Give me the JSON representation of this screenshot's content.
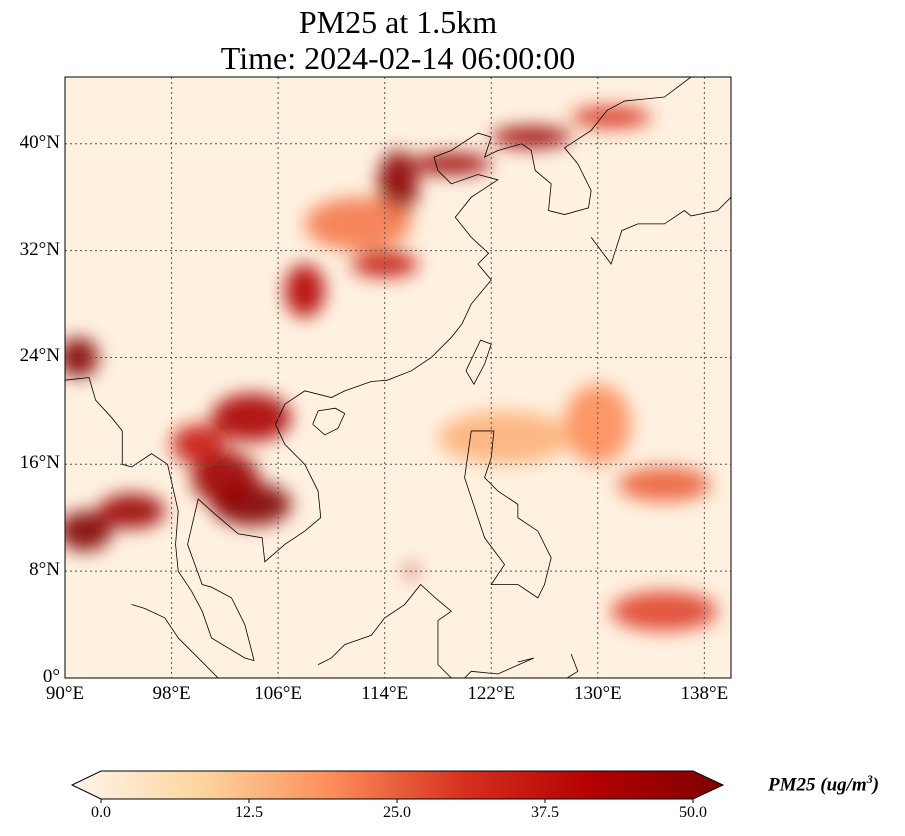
{
  "title_line1": "PM25 at 1.5km",
  "title_line2": "Time: 2024-02-14 06:00:00",
  "chart_data": {
    "type": "heatmap",
    "variable": "PM25",
    "units_label": "PM25 (ug/m",
    "units_sup": "3",
    "units_close": ")",
    "lon_range": [
      90,
      140
    ],
    "lat_range": [
      0,
      45
    ],
    "lon_ticks": [
      90,
      98,
      106,
      114,
      122,
      130,
      138
    ],
    "lon_tick_labels": [
      "90°E",
      "98°E",
      "106°E",
      "114°E",
      "122°E",
      "130°E",
      "138°E"
    ],
    "lat_ticks": [
      0,
      8,
      16,
      24,
      32,
      40
    ],
    "lat_tick_labels": [
      "0°",
      "8°N",
      "16°N",
      "24°N",
      "32°N",
      "40°N"
    ],
    "colorbar": {
      "range": [
        0,
        50
      ],
      "ticks": [
        "0.0",
        "12.5",
        "25.0",
        "37.5",
        "50.0"
      ],
      "extend": "both",
      "colormap": [
        "#fff5eb",
        "#fdd49e",
        "#fc8d59",
        "#d7301f",
        "#b30000",
        "#7f0000"
      ]
    },
    "hotspots": [
      {
        "lon": 91.5,
        "lat": 11,
        "value": 50,
        "rx": 2,
        "ry": 1.5
      },
      {
        "lon": 95,
        "lat": 12.5,
        "value": 45,
        "rx": 2.5,
        "ry": 1.3
      },
      {
        "lon": 91,
        "lat": 24,
        "value": 50,
        "rx": 1.5,
        "ry": 1.5
      },
      {
        "lon": 104,
        "lat": 13,
        "value": 50,
        "rx": 3,
        "ry": 1.6
      },
      {
        "lon": 102,
        "lat": 15,
        "value": 45,
        "rx": 2.5,
        "ry": 2
      },
      {
        "lon": 104,
        "lat": 19.5,
        "value": 42,
        "rx": 3,
        "ry": 1.8
      },
      {
        "lon": 100,
        "lat": 17.5,
        "value": 35,
        "rx": 2,
        "ry": 1.5
      },
      {
        "lon": 108,
        "lat": 29,
        "value": 40,
        "rx": 1.5,
        "ry": 2
      },
      {
        "lon": 114,
        "lat": 31,
        "value": 35,
        "rx": 2.5,
        "ry": 1
      },
      {
        "lon": 115,
        "lat": 37,
        "value": 48,
        "rx": 1.5,
        "ry": 2.5
      },
      {
        "lon": 119,
        "lat": 38.5,
        "value": 45,
        "rx": 3,
        "ry": 0.8
      },
      {
        "lon": 125,
        "lat": 40.5,
        "value": 45,
        "rx": 3,
        "ry": 0.8
      },
      {
        "lon": 131,
        "lat": 42,
        "value": 30,
        "rx": 3,
        "ry": 0.8
      },
      {
        "lon": 112,
        "lat": 34,
        "value": 22,
        "rx": 4,
        "ry": 2
      },
      {
        "lon": 135,
        "lat": 5,
        "value": 28,
        "rx": 4,
        "ry": 1.5
      },
      {
        "lon": 135,
        "lat": 14.5,
        "value": 25,
        "rx": 3.5,
        "ry": 1.3
      },
      {
        "lon": 130,
        "lat": 19,
        "value": 20,
        "rx": 2.5,
        "ry": 3
      },
      {
        "lon": 123,
        "lat": 18,
        "value": 15,
        "rx": 5,
        "ry": 2
      },
      {
        "lon": 116,
        "lat": 8,
        "value": 40,
        "rx": 0.3,
        "ry": 0.6
      }
    ]
  }
}
